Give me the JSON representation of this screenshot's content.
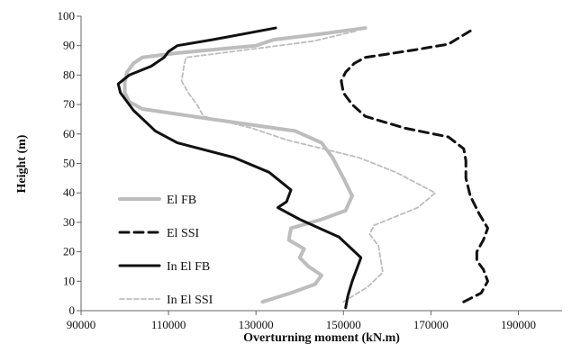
{
  "chart_data": {
    "type": "line",
    "title": "",
    "xlabel": "Overturning moment (kN.m)",
    "ylabel": "Height (m)",
    "xlim": [
      90000,
      200000
    ],
    "ylim": [
      0,
      100
    ],
    "xticks": [
      "90000",
      "110000",
      "130000",
      "150000",
      "170000",
      "190000"
    ],
    "yticks": [
      "0",
      "10",
      "20",
      "30",
      "40",
      "50",
      "60",
      "70",
      "80",
      "90",
      "100"
    ],
    "grid": false,
    "legend_position": "left",
    "series": [
      {
        "name": "El FB",
        "color": "#bdbdbd",
        "style": "solid",
        "points": [
          [
            131500,
            3
          ],
          [
            138000,
            6
          ],
          [
            143500,
            9
          ],
          [
            145000,
            12
          ],
          [
            142000,
            15
          ],
          [
            140000,
            18
          ],
          [
            141000,
            21
          ],
          [
            137500,
            24
          ],
          [
            138000,
            28
          ],
          [
            145000,
            31
          ],
          [
            150500,
            34
          ],
          [
            152000,
            39
          ],
          [
            150000,
            45
          ],
          [
            147500,
            52
          ],
          [
            145000,
            57
          ],
          [
            139000,
            61
          ],
          [
            120000,
            65
          ],
          [
            104000,
            68.5
          ],
          [
            101000,
            71
          ],
          [
            100000,
            74
          ],
          [
            100000,
            77.5
          ],
          [
            100500,
            81
          ],
          [
            102000,
            84
          ],
          [
            104000,
            86
          ],
          [
            112000,
            87.5
          ],
          [
            130000,
            90
          ],
          [
            134000,
            92
          ],
          [
            145000,
            94
          ],
          [
            155000,
            96
          ]
        ]
      },
      {
        "name": "El SSI",
        "color": "#111111",
        "style": "dashed",
        "points": [
          [
            177500,
            3
          ],
          [
            181500,
            6
          ],
          [
            183000,
            10
          ],
          [
            182000,
            14
          ],
          [
            180500,
            17
          ],
          [
            180500,
            20
          ],
          [
            182000,
            24
          ],
          [
            183000,
            28
          ],
          [
            181000,
            33
          ],
          [
            179000,
            39
          ],
          [
            178000,
            45
          ],
          [
            178000,
            51
          ],
          [
            177500,
            55
          ],
          [
            174000,
            59
          ],
          [
            164000,
            62
          ],
          [
            155000,
            66
          ],
          [
            152000,
            70
          ],
          [
            150000,
            74
          ],
          [
            149500,
            78
          ],
          [
            150500,
            81
          ],
          [
            152500,
            84
          ],
          [
            155000,
            86
          ],
          [
            166000,
            88.5
          ],
          [
            174000,
            90.5
          ],
          [
            179000,
            95
          ]
        ]
      },
      {
        "name": "In El FB",
        "color": "#111111",
        "style": "solid",
        "points": [
          [
            150500,
            1
          ],
          [
            151000,
            5
          ],
          [
            152000,
            10
          ],
          [
            154000,
            18
          ],
          [
            149000,
            25
          ],
          [
            140000,
            31
          ],
          [
            135000,
            35
          ],
          [
            137000,
            37
          ],
          [
            138000,
            41
          ],
          [
            133000,
            47
          ],
          [
            125000,
            52
          ],
          [
            112000,
            57
          ],
          [
            107000,
            61
          ],
          [
            102000,
            68
          ],
          [
            99000,
            74
          ],
          [
            98500,
            77
          ],
          [
            101000,
            80
          ],
          [
            106000,
            83
          ],
          [
            109000,
            86
          ],
          [
            110000,
            88
          ],
          [
            112000,
            90
          ],
          [
            120000,
            92
          ],
          [
            134500,
            96
          ]
        ]
      },
      {
        "name": "In El SSI",
        "color": "#bdbdbd",
        "style": "dashed",
        "points": [
          [
            150000,
            3
          ],
          [
            155500,
            8
          ],
          [
            159000,
            13
          ],
          [
            158000,
            22
          ],
          [
            156000,
            26
          ],
          [
            157000,
            29
          ],
          [
            167000,
            35
          ],
          [
            171000,
            40
          ],
          [
            162000,
            47
          ],
          [
            153500,
            52
          ],
          [
            137000,
            58
          ],
          [
            129000,
            62
          ],
          [
            118000,
            66
          ],
          [
            116500,
            70
          ],
          [
            114500,
            74
          ],
          [
            113000,
            78
          ],
          [
            113500,
            83
          ],
          [
            114000,
            86
          ],
          [
            130000,
            89
          ],
          [
            143000,
            91.5
          ],
          [
            153000,
            95
          ]
        ]
      }
    ]
  }
}
